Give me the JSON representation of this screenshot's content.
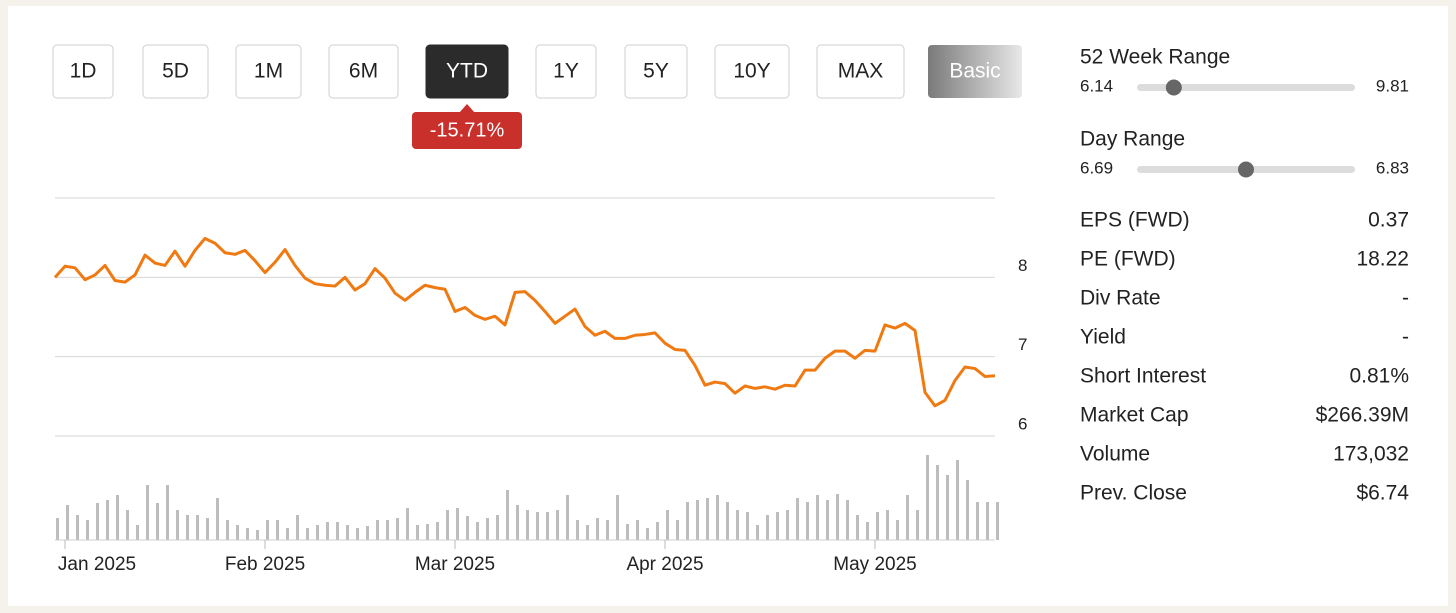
{
  "range_buttons": [
    "1D",
    "5D",
    "1M",
    "6M",
    "YTD",
    "1Y",
    "5Y",
    "10Y",
    "MAX",
    "Basic"
  ],
  "active_button": 4,
  "change_badge": "-15.71%",
  "chart_data": {
    "type": "line",
    "color": "#f07a12",
    "categories": [
      null,
      "Jan 2025",
      null,
      null,
      null,
      null,
      null,
      null,
      null,
      null,
      null,
      null,
      null,
      null,
      null,
      null,
      null,
      null,
      null,
      null,
      null,
      "Feb 2025",
      null,
      null,
      null,
      null,
      null,
      null,
      null,
      null,
      null,
      null,
      null,
      null,
      null,
      null,
      null,
      null,
      null,
      null,
      "Mar 2025",
      null,
      null,
      null,
      null,
      null,
      null,
      null,
      null,
      null,
      null,
      null,
      null,
      null,
      null,
      null,
      null,
      null,
      null,
      null,
      null,
      "Apr 2025",
      null,
      null,
      null,
      null,
      null,
      null,
      null,
      null,
      null,
      null,
      null,
      null,
      null,
      null,
      null,
      null,
      null,
      null,
      null,
      null,
      "May 2025",
      null,
      null,
      null,
      null,
      null,
      null,
      null,
      null,
      null,
      null,
      null,
      null
    ],
    "values": [
      8.0,
      8.14,
      8.12,
      7.97,
      8.03,
      8.15,
      7.96,
      7.94,
      8.03,
      8.28,
      8.18,
      8.15,
      8.33,
      8.14,
      8.34,
      8.49,
      8.43,
      8.31,
      8.29,
      8.34,
      8.21,
      8.06,
      8.19,
      8.35,
      8.15,
      7.99,
      7.92,
      7.9,
      7.89,
      8.0,
      7.84,
      7.92,
      8.11,
      7.99,
      7.8,
      7.71,
      7.81,
      7.9,
      7.87,
      7.85,
      7.57,
      7.62,
      7.52,
      7.47,
      7.51,
      7.4,
      7.81,
      7.82,
      7.71,
      7.57,
      7.42,
      7.51,
      7.6,
      7.38,
      7.27,
      7.32,
      7.23,
      7.23,
      7.27,
      7.28,
      7.3,
      7.17,
      7.09,
      7.08,
      6.89,
      6.64,
      6.68,
      6.66,
      6.54,
      6.63,
      6.6,
      6.62,
      6.59,
      6.64,
      6.63,
      6.83,
      6.83,
      6.98,
      7.07,
      7.07,
      6.98,
      7.08,
      7.07,
      7.4,
      7.36,
      7.42,
      7.33,
      6.55,
      6.38,
      6.45,
      6.7,
      6.87,
      6.85,
      6.75,
      6.76
    ],
    "volume": [
      22,
      35,
      25,
      20,
      37,
      40,
      45,
      30,
      15,
      55,
      37,
      55,
      30,
      25,
      25,
      22,
      42,
      20,
      15,
      12,
      10,
      20,
      20,
      12,
      25,
      12,
      15,
      18,
      18,
      15,
      12,
      14,
      20,
      20,
      22,
      32,
      15,
      16,
      18,
      30,
      32,
      24,
      18,
      22,
      25,
      50,
      35,
      30,
      28,
      28,
      30,
      45,
      20,
      15,
      22,
      20,
      45,
      16,
      20,
      12,
      18,
      30,
      20,
      38,
      40,
      42,
      45,
      38,
      30,
      28,
      15,
      25,
      28,
      30,
      42,
      38,
      45,
      40,
      46,
      40,
      25,
      18,
      28,
      30,
      20,
      45,
      30,
      85,
      75,
      65,
      80,
      60,
      38,
      38,
      38
    ],
    "volume_color": "#bdbdbd",
    "ylim": [
      6,
      9
    ],
    "yticks": [
      6,
      7,
      8
    ],
    "grid": true
  },
  "ranges": [
    {
      "label": "52 Week Range",
      "low": 6.14,
      "high": 9.81,
      "marker": 6.76
    },
    {
      "label": "Day Range",
      "low": 6.69,
      "high": 6.83,
      "marker": 6.76
    }
  ],
  "stats": [
    [
      "EPS (FWD)",
      "0.37"
    ],
    [
      "PE (FWD)",
      "18.22"
    ],
    [
      "Div Rate",
      "-"
    ],
    [
      "Yield",
      "-"
    ],
    [
      "Short Interest",
      "0.81%"
    ],
    [
      "Market Cap",
      "$266.39M"
    ],
    [
      "Volume",
      "173,032"
    ],
    [
      "Prev. Close",
      "$6.74"
    ]
  ]
}
